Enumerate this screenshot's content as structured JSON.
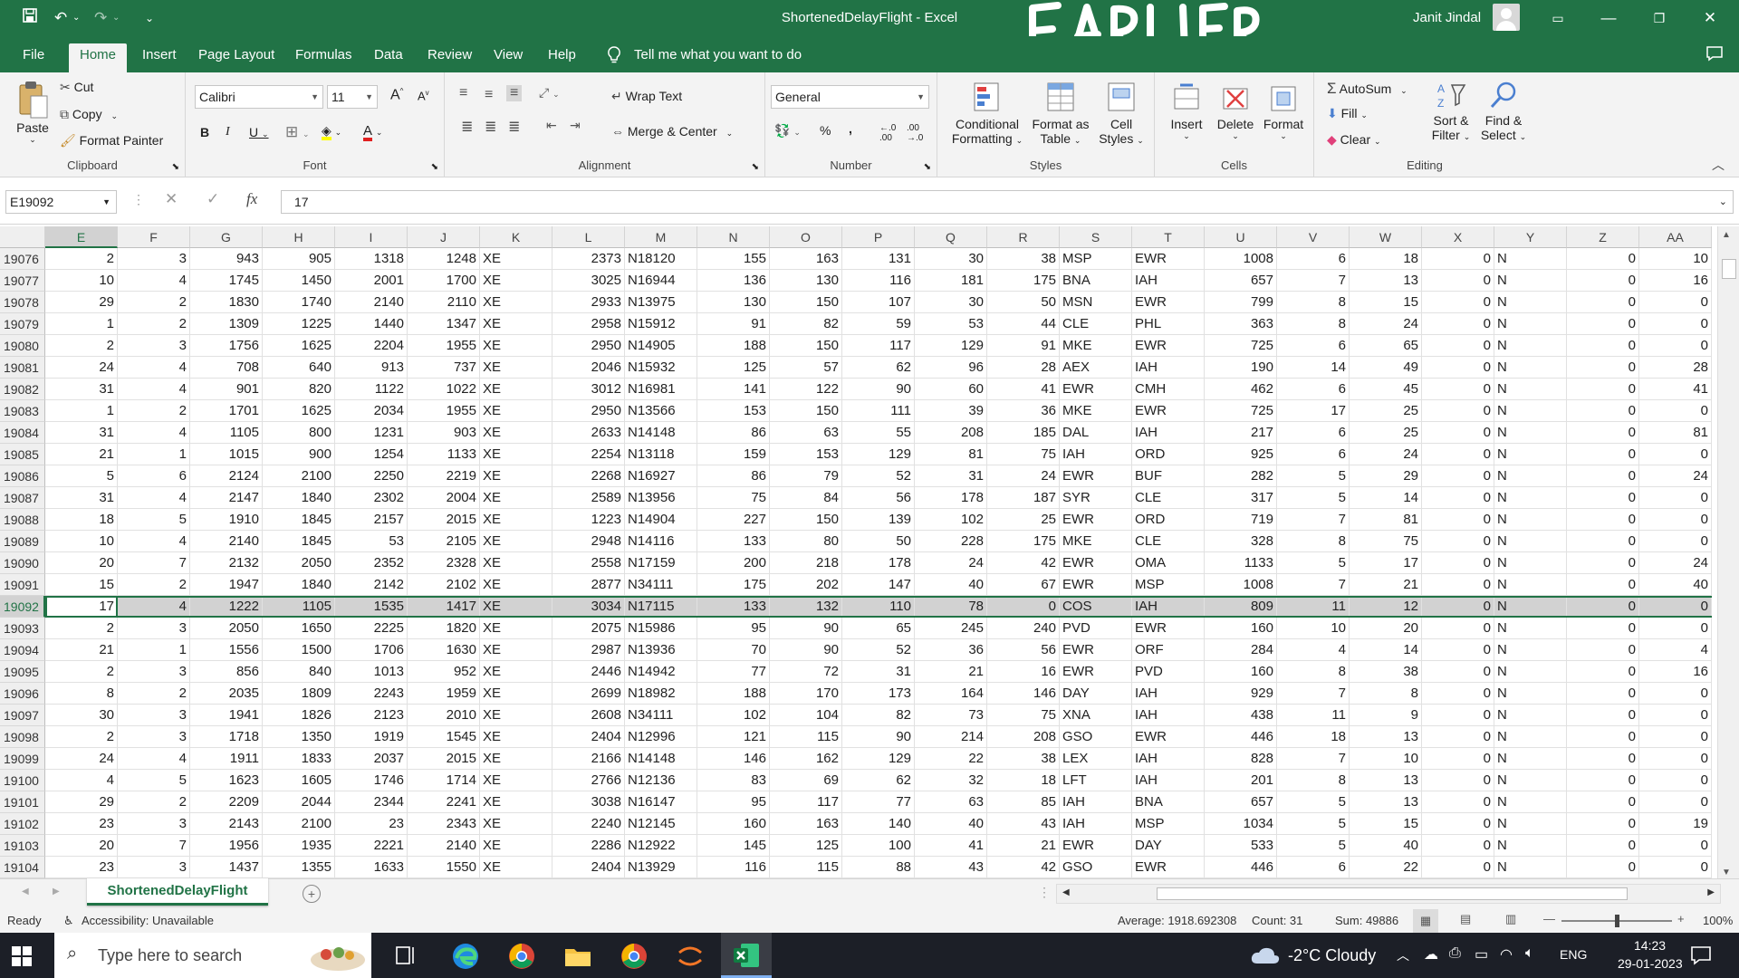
{
  "title_bar": {
    "document_title": "ShortenedDelayFlight - Excel",
    "user_name": "Janit Jindal",
    "scribble": "EARLIER ,,,"
  },
  "menu_tabs": [
    "File",
    "Home",
    "Insert",
    "Page Layout",
    "Formulas",
    "Data",
    "Review",
    "View",
    "Help"
  ],
  "tell_me": "Tell me what you want to do",
  "ribbon": {
    "clipboard": {
      "label": "Clipboard",
      "paste": "Paste",
      "cut": "Cut",
      "copy": "Copy",
      "format_painter": "Format Painter"
    },
    "font": {
      "label": "Font",
      "font_name": "Calibri",
      "font_size": "11"
    },
    "alignment": {
      "label": "Alignment",
      "wrap_text": "Wrap Text",
      "merge_center": "Merge & Center"
    },
    "number": {
      "label": "Number",
      "format": "General"
    },
    "styles": {
      "label": "Styles",
      "conditional_formatting": [
        "Conditional",
        "Formatting"
      ],
      "format_as_table": [
        "Format as",
        "Table"
      ],
      "cell_styles": [
        "Cell",
        "Styles"
      ]
    },
    "cells": {
      "label": "Cells",
      "insert": "Insert",
      "delete": "Delete",
      "format": "Format"
    },
    "editing": {
      "label": "Editing",
      "autosum": "AutoSum",
      "fill": "Fill",
      "clear": "Clear",
      "sort_filter": [
        "Sort &",
        "Filter"
      ],
      "find_select": [
        "Find &",
        "Select"
      ]
    }
  },
  "formula_bar": {
    "name_box": "E19092",
    "formula": "17"
  },
  "columns": [
    "E",
    "F",
    "G",
    "H",
    "I",
    "J",
    "K",
    "L",
    "M",
    "N",
    "O",
    "P",
    "Q",
    "R",
    "S",
    "T",
    "U",
    "V",
    "W",
    "X",
    "Y",
    "Z",
    "AA"
  ],
  "rows": [
    {
      "n": "19076",
      "c": [
        "2",
        "3",
        "943",
        "905",
        "1318",
        "1248",
        "XE",
        "2373",
        "N18120",
        "155",
        "163",
        "131",
        "30",
        "38",
        "MSP",
        "EWR",
        "1008",
        "6",
        "18",
        "0",
        "N",
        "0",
        "10"
      ]
    },
    {
      "n": "19077",
      "c": [
        "10",
        "4",
        "1745",
        "1450",
        "2001",
        "1700",
        "XE",
        "3025",
        "N16944",
        "136",
        "130",
        "116",
        "181",
        "175",
        "BNA",
        "IAH",
        "657",
        "7",
        "13",
        "0",
        "N",
        "0",
        "16"
      ]
    },
    {
      "n": "19078",
      "c": [
        "29",
        "2",
        "1830",
        "1740",
        "2140",
        "2110",
        "XE",
        "2933",
        "N13975",
        "130",
        "150",
        "107",
        "30",
        "50",
        "MSN",
        "EWR",
        "799",
        "8",
        "15",
        "0",
        "N",
        "0",
        "0"
      ]
    },
    {
      "n": "19079",
      "c": [
        "1",
        "2",
        "1309",
        "1225",
        "1440",
        "1347",
        "XE",
        "2958",
        "N15912",
        "91",
        "82",
        "59",
        "53",
        "44",
        "CLE",
        "PHL",
        "363",
        "8",
        "24",
        "0",
        "N",
        "0",
        "0"
      ]
    },
    {
      "n": "19080",
      "c": [
        "2",
        "3",
        "1756",
        "1625",
        "2204",
        "1955",
        "XE",
        "2950",
        "N14905",
        "188",
        "150",
        "117",
        "129",
        "91",
        "MKE",
        "EWR",
        "725",
        "6",
        "65",
        "0",
        "N",
        "0",
        "0"
      ]
    },
    {
      "n": "19081",
      "c": [
        "24",
        "4",
        "708",
        "640",
        "913",
        "737",
        "XE",
        "2046",
        "N15932",
        "125",
        "57",
        "62",
        "96",
        "28",
        "AEX",
        "IAH",
        "190",
        "14",
        "49",
        "0",
        "N",
        "0",
        "28"
      ]
    },
    {
      "n": "19082",
      "c": [
        "31",
        "4",
        "901",
        "820",
        "1122",
        "1022",
        "XE",
        "3012",
        "N16981",
        "141",
        "122",
        "90",
        "60",
        "41",
        "EWR",
        "CMH",
        "462",
        "6",
        "45",
        "0",
        "N",
        "0",
        "41"
      ]
    },
    {
      "n": "19083",
      "c": [
        "1",
        "2",
        "1701",
        "1625",
        "2034",
        "1955",
        "XE",
        "2950",
        "N13566",
        "153",
        "150",
        "111",
        "39",
        "36",
        "MKE",
        "EWR",
        "725",
        "17",
        "25",
        "0",
        "N",
        "0",
        "0"
      ]
    },
    {
      "n": "19084",
      "c": [
        "31",
        "4",
        "1105",
        "800",
        "1231",
        "903",
        "XE",
        "2633",
        "N14148",
        "86",
        "63",
        "55",
        "208",
        "185",
        "DAL",
        "IAH",
        "217",
        "6",
        "25",
        "0",
        "N",
        "0",
        "81"
      ]
    },
    {
      "n": "19085",
      "c": [
        "21",
        "1",
        "1015",
        "900",
        "1254",
        "1133",
        "XE",
        "2254",
        "N13118",
        "159",
        "153",
        "129",
        "81",
        "75",
        "IAH",
        "ORD",
        "925",
        "6",
        "24",
        "0",
        "N",
        "0",
        "0"
      ]
    },
    {
      "n": "19086",
      "c": [
        "5",
        "6",
        "2124",
        "2100",
        "2250",
        "2219",
        "XE",
        "2268",
        "N16927",
        "86",
        "79",
        "52",
        "31",
        "24",
        "EWR",
        "BUF",
        "282",
        "5",
        "29",
        "0",
        "N",
        "0",
        "24"
      ]
    },
    {
      "n": "19087",
      "c": [
        "31",
        "4",
        "2147",
        "1840",
        "2302",
        "2004",
        "XE",
        "2589",
        "N13956",
        "75",
        "84",
        "56",
        "178",
        "187",
        "SYR",
        "CLE",
        "317",
        "5",
        "14",
        "0",
        "N",
        "0",
        "0"
      ]
    },
    {
      "n": "19088",
      "c": [
        "18",
        "5",
        "1910",
        "1845",
        "2157",
        "2015",
        "XE",
        "1223",
        "N14904",
        "227",
        "150",
        "139",
        "102",
        "25",
        "EWR",
        "ORD",
        "719",
        "7",
        "81",
        "0",
        "N",
        "0",
        "0"
      ]
    },
    {
      "n": "19089",
      "c": [
        "10",
        "4",
        "2140",
        "1845",
        "53",
        "2105",
        "XE",
        "2948",
        "N14116",
        "133",
        "80",
        "50",
        "228",
        "175",
        "MKE",
        "CLE",
        "328",
        "8",
        "75",
        "0",
        "N",
        "0",
        "0"
      ]
    },
    {
      "n": "19090",
      "c": [
        "20",
        "7",
        "2132",
        "2050",
        "2352",
        "2328",
        "XE",
        "2558",
        "N17159",
        "200",
        "218",
        "178",
        "24",
        "42",
        "EWR",
        "OMA",
        "1133",
        "5",
        "17",
        "0",
        "N",
        "0",
        "24"
      ]
    },
    {
      "n": "19091",
      "c": [
        "15",
        "2",
        "1947",
        "1840",
        "2142",
        "2102",
        "XE",
        "2877",
        "N34111",
        "175",
        "202",
        "147",
        "40",
        "67",
        "EWR",
        "MSP",
        "1008",
        "7",
        "21",
        "0",
        "N",
        "0",
        "40"
      ]
    },
    {
      "n": "19092",
      "c": [
        "17",
        "4",
        "1222",
        "1105",
        "1535",
        "1417",
        "XE",
        "3034",
        "N17115",
        "133",
        "132",
        "110",
        "78",
        "0",
        "COS",
        "IAH",
        "809",
        "11",
        "12",
        "0",
        "N",
        "0",
        "0"
      ],
      "selected": true
    },
    {
      "n": "19093",
      "c": [
        "2",
        "3",
        "2050",
        "1650",
        "2225",
        "1820",
        "XE",
        "2075",
        "N15986",
        "95",
        "90",
        "65",
        "245",
        "240",
        "PVD",
        "EWR",
        "160",
        "10",
        "20",
        "0",
        "N",
        "0",
        "0"
      ]
    },
    {
      "n": "19094",
      "c": [
        "21",
        "1",
        "1556",
        "1500",
        "1706",
        "1630",
        "XE",
        "2987",
        "N13936",
        "70",
        "90",
        "52",
        "36",
        "56",
        "EWR",
        "ORF",
        "284",
        "4",
        "14",
        "0",
        "N",
        "0",
        "4"
      ]
    },
    {
      "n": "19095",
      "c": [
        "2",
        "3",
        "856",
        "840",
        "1013",
        "952",
        "XE",
        "2446",
        "N14942",
        "77",
        "72",
        "31",
        "21",
        "16",
        "EWR",
        "PVD",
        "160",
        "8",
        "38",
        "0",
        "N",
        "0",
        "16"
      ]
    },
    {
      "n": "19096",
      "c": [
        "8",
        "2",
        "2035",
        "1809",
        "2243",
        "1959",
        "XE",
        "2699",
        "N18982",
        "188",
        "170",
        "173",
        "164",
        "146",
        "DAY",
        "IAH",
        "929",
        "7",
        "8",
        "0",
        "N",
        "0",
        "0"
      ]
    },
    {
      "n": "19097",
      "c": [
        "30",
        "3",
        "1941",
        "1826",
        "2123",
        "2010",
        "XE",
        "2608",
        "N34111",
        "102",
        "104",
        "82",
        "73",
        "75",
        "XNA",
        "IAH",
        "438",
        "11",
        "9",
        "0",
        "N",
        "0",
        "0"
      ]
    },
    {
      "n": "19098",
      "c": [
        "2",
        "3",
        "1718",
        "1350",
        "1919",
        "1545",
        "XE",
        "2404",
        "N12996",
        "121",
        "115",
        "90",
        "214",
        "208",
        "GSO",
        "EWR",
        "446",
        "18",
        "13",
        "0",
        "N",
        "0",
        "0"
      ]
    },
    {
      "n": "19099",
      "c": [
        "24",
        "4",
        "1911",
        "1833",
        "2037",
        "2015",
        "XE",
        "2166",
        "N14148",
        "146",
        "162",
        "129",
        "22",
        "38",
        "LEX",
        "IAH",
        "828",
        "7",
        "10",
        "0",
        "N",
        "0",
        "0"
      ]
    },
    {
      "n": "19100",
      "c": [
        "4",
        "5",
        "1623",
        "1605",
        "1746",
        "1714",
        "XE",
        "2766",
        "N12136",
        "83",
        "69",
        "62",
        "32",
        "18",
        "LFT",
        "IAH",
        "201",
        "8",
        "13",
        "0",
        "N",
        "0",
        "0"
      ]
    },
    {
      "n": "19101",
      "c": [
        "29",
        "2",
        "2209",
        "2044",
        "2344",
        "2241",
        "XE",
        "3038",
        "N16147",
        "95",
        "117",
        "77",
        "63",
        "85",
        "IAH",
        "BNA",
        "657",
        "5",
        "13",
        "0",
        "N",
        "0",
        "0"
      ]
    },
    {
      "n": "19102",
      "c": [
        "23",
        "3",
        "2143",
        "2100",
        "23",
        "2343",
        "XE",
        "2240",
        "N12145",
        "160",
        "163",
        "140",
        "40",
        "43",
        "IAH",
        "MSP",
        "1034",
        "5",
        "15",
        "0",
        "N",
        "0",
        "19"
      ]
    },
    {
      "n": "19103",
      "c": [
        "20",
        "7",
        "1956",
        "1935",
        "2221",
        "2140",
        "XE",
        "2286",
        "N12922",
        "145",
        "125",
        "100",
        "41",
        "21",
        "EWR",
        "DAY",
        "533",
        "5",
        "40",
        "0",
        "N",
        "0",
        "0"
      ]
    },
    {
      "n": "19104",
      "c": [
        "23",
        "3",
        "1437",
        "1355",
        "1633",
        "1550",
        "XE",
        "2404",
        "N13929",
        "116",
        "115",
        "88",
        "43",
        "42",
        "GSO",
        "EWR",
        "446",
        "6",
        "22",
        "0",
        "N",
        "0",
        "0"
      ]
    }
  ],
  "sheet_tab": "ShortenedDelayFlight",
  "status_bar": {
    "ready": "Ready",
    "accessibility": "Accessibility: Unavailable",
    "average": "Average: 1918.692308",
    "count": "Count: 31",
    "sum": "Sum: 49886",
    "zoom": "100%",
    "zoom_level": 1.0
  },
  "taskbar": {
    "search_placeholder": "Type here to search",
    "weather": "-2°C  Cloudy",
    "language": "ENG",
    "time": "14:23",
    "date": "29-01-2023"
  },
  "colors": {
    "excel_green": "#217346",
    "ribbon_bg": "#f3f3f3",
    "selected_row": "#d2d2d2",
    "taskbar": "#1c1f27"
  }
}
